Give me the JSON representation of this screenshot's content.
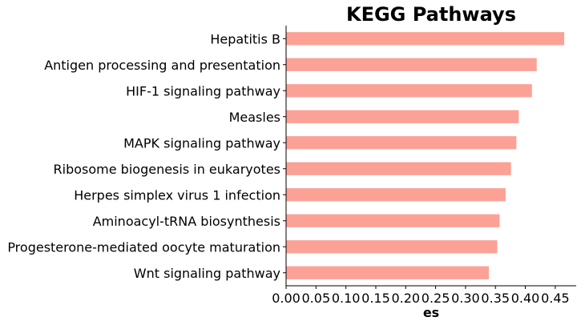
{
  "chart_data": {
    "type": "bar",
    "orientation": "horizontal",
    "title": "KEGG Pathways",
    "xlabel": "es",
    "ylabel": "",
    "bar_color": "#fba196",
    "xlim": [
      0,
      0.485
    ],
    "xticks": [
      "0.00",
      "0.05",
      "0.10",
      "0.15",
      "0.20",
      "0.25",
      "0.30",
      "0.35",
      "0.40",
      "0.45"
    ],
    "grid": false,
    "legend": "none",
    "categories": [
      "Hepatitis B",
      "Antigen processing and presentation",
      "HIF-1 signaling pathway",
      "Measles",
      "MAPK signaling pathway",
      "Ribosome biogenesis in eukaryotes",
      "Herpes simplex virus 1 infection",
      "Aminoacyl-tRNA biosynthesis",
      "Progesterone-mediated oocyte maturation",
      "Wnt signaling pathway"
    ],
    "values": [
      0.465,
      0.419,
      0.411,
      0.389,
      0.385,
      0.376,
      0.367,
      0.357,
      0.353,
      0.339
    ]
  }
}
